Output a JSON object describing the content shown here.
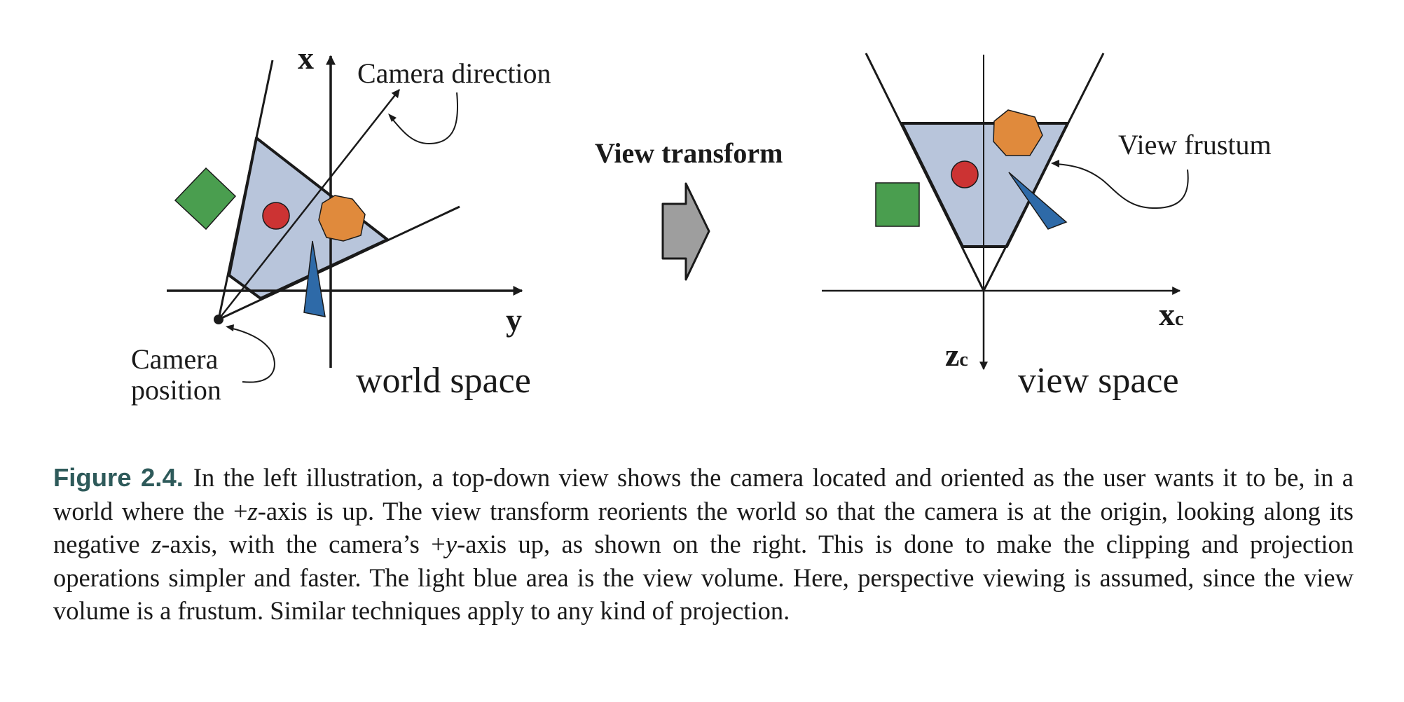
{
  "diagram": {
    "left": {
      "axis_x_label": "x",
      "axis_y_label": "y",
      "camera_direction_label": "Camera direction",
      "camera_position_label_line1": "Camera",
      "camera_position_label_line2": "position",
      "space_label": "world space"
    },
    "transform_label": "View transform",
    "right": {
      "axis_x_label": "x",
      "axis_x_sub": "c",
      "axis_z_label": "z",
      "axis_z_sub": "c",
      "frustum_label": "View frustum",
      "space_label": "view space"
    },
    "colors": {
      "frustum_fill": "#b8c5db",
      "square": "#4a9e4f",
      "circle": "#cc3333",
      "heptagon": "#e08a3c",
      "wedge": "#2e6aa8",
      "arrow": "#9e9e9e"
    }
  },
  "caption": {
    "lead": "Figure 2.4.",
    "part1": "In the left illustration, a top-down view shows the camera located and oriented as the user wants it to be, in a world where the +",
    "var1": "z",
    "part2": "-axis is up. The view transform reorients the world so that the camera is at the origin, looking along its negative ",
    "var2": "z",
    "part3": "-axis, with the camera’s +",
    "var3": "y",
    "part4": "-axis up, as shown on the right. This is done to make the clipping and projection operations simpler and faster. The light blue area is the view volume. Here, perspective viewing is assumed, since the view volume is a frustum. Similar techniques apply to any kind of projection."
  }
}
